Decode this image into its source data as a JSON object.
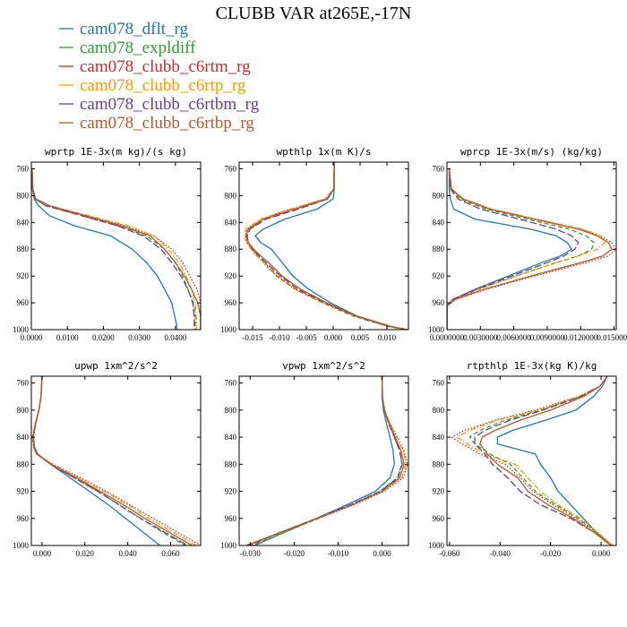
{
  "title": "CLUBB VAR at265E,-17N",
  "series_styles": [
    {
      "name": "cam078_dflt_rg",
      "color": "#1f77b4",
      "dash": "solid"
    },
    {
      "name": "cam078_expldiff",
      "color": "#2ca02c",
      "dash": "dashed"
    },
    {
      "name": "cam078_clubb_c6rtm_rg",
      "color": "#d62728",
      "dash": "dotted"
    },
    {
      "name": "cam078_clubb_c6rtp_rg",
      "color": "#ff9900",
      "dash": "dashdot"
    },
    {
      "name": "cam078_clubb_c6rtbm_rg",
      "color": "#6a3d9a",
      "dash": "longdash"
    },
    {
      "name": "cam078_clubb_c6rtbp_rg",
      "color": "#b35a2a",
      "dash": "solid"
    }
  ],
  "chart_data": [
    {
      "type": "line",
      "title": "wprtp  1E-3x(m kg)/(s kg)",
      "xlim": [
        0,
        0.047
      ],
      "ylim": [
        1000,
        750
      ],
      "xticks": [
        0,
        0.01,
        0.02,
        0.03,
        0.04
      ],
      "xticklabels": [
        "0.0000",
        "0.0100",
        "0.0200",
        "0.0300",
        "0.0400"
      ],
      "yticks": [
        760,
        800,
        840,
        880,
        920,
        960,
        1000
      ],
      "y": [
        760,
        790,
        805,
        815,
        830,
        845,
        860,
        880,
        900,
        920,
        940,
        960,
        980,
        990,
        1000
      ],
      "series": [
        {
          "name": "cam078_dflt_rg",
          "values": [
            0.0002,
            0.0003,
            0.0008,
            0.002,
            0.005,
            0.012,
            0.022,
            0.028,
            0.032,
            0.035,
            0.037,
            0.039,
            0.0398,
            0.0402,
            0.0405
          ]
        },
        {
          "name": "cam078_expldiff",
          "values": [
            0.0002,
            0.0004,
            0.001,
            0.004,
            0.014,
            0.024,
            0.032,
            0.037,
            0.04,
            0.042,
            0.0435,
            0.045,
            0.0455,
            0.0455,
            0.0455
          ]
        },
        {
          "name": "cam078_clubb_c6rtm_rg",
          "values": [
            0.0002,
            0.0004,
            0.0012,
            0.005,
            0.015,
            0.026,
            0.034,
            0.039,
            0.042,
            0.044,
            0.046,
            0.047,
            0.047,
            0.047,
            0.047
          ]
        },
        {
          "name": "cam078_clubb_c6rtp_rg",
          "values": [
            0.0002,
            0.0004,
            0.0012,
            0.005,
            0.016,
            0.027,
            0.034,
            0.038,
            0.041,
            0.043,
            0.0445,
            0.0455,
            0.0458,
            0.0458,
            0.0458
          ]
        },
        {
          "name": "cam078_clubb_c6rtbm_rg",
          "values": [
            0.0002,
            0.0004,
            0.0011,
            0.004,
            0.014,
            0.024,
            0.031,
            0.036,
            0.039,
            0.0415,
            0.0435,
            0.0448,
            0.0452,
            0.0452,
            0.0452
          ]
        },
        {
          "name": "cam078_clubb_c6rtbp_rg",
          "values": [
            0.0002,
            0.0004,
            0.0012,
            0.005,
            0.015,
            0.025,
            0.033,
            0.037,
            0.04,
            0.0425,
            0.0445,
            0.0462,
            0.047,
            0.047,
            0.047
          ]
        }
      ]
    },
    {
      "type": "line",
      "title": "wpthlp  1x(m K)/s",
      "xlim": [
        -0.0175,
        0.014
      ],
      "ylim": [
        1000,
        750
      ],
      "xticks": [
        -0.015,
        -0.01,
        -0.005,
        0,
        0.005,
        0.01
      ],
      "xticklabels": [
        "-0.015",
        "-0.010",
        "-0.005",
        "0.000",
        "0.005",
        "0.010"
      ],
      "yticks": [
        760,
        800,
        840,
        880,
        920,
        960,
        1000
      ],
      "y": [
        750,
        790,
        805,
        820,
        835,
        850,
        860,
        870,
        880,
        890,
        900,
        920,
        940,
        960,
        980,
        995,
        1000
      ],
      "series": [
        {
          "name": "cam078_dflt_rg",
          "values": [
            0.0002,
            0.0002,
            0.0,
            -0.003,
            -0.009,
            -0.013,
            -0.0145,
            -0.0135,
            -0.0115,
            -0.0105,
            -0.0095,
            -0.0075,
            -0.0045,
            -0.0005,
            0.0045,
            0.0105,
            0.0135
          ]
        },
        {
          "name": "cam078_expldiff",
          "values": [
            0.0002,
            0.0001,
            -0.001,
            -0.007,
            -0.013,
            -0.0155,
            -0.016,
            -0.0158,
            -0.015,
            -0.014,
            -0.0128,
            -0.0105,
            -0.007,
            -0.002,
            0.0038,
            0.01,
            0.0135
          ]
        },
        {
          "name": "cam078_clubb_c6rtm_rg",
          "values": [
            0.0002,
            0.0001,
            -0.0015,
            -0.008,
            -0.0135,
            -0.016,
            -0.0163,
            -0.016,
            -0.0152,
            -0.0142,
            -0.013,
            -0.0105,
            -0.007,
            -0.0018,
            0.0042,
            0.0105,
            0.0138
          ]
        },
        {
          "name": "cam078_clubb_c6rtp_rg",
          "values": [
            0.0002,
            0.0001,
            -0.0015,
            -0.008,
            -0.0135,
            -0.0163,
            -0.0165,
            -0.0162,
            -0.0153,
            -0.0142,
            -0.0128,
            -0.0102,
            -0.0068,
            -0.0018,
            0.004,
            0.0102,
            0.0138
          ]
        },
        {
          "name": "cam078_clubb_c6rtbm_rg",
          "values": [
            0.0002,
            0.0001,
            -0.001,
            -0.0065,
            -0.0125,
            -0.0155,
            -0.016,
            -0.0158,
            -0.015,
            -0.0138,
            -0.0125,
            -0.0098,
            -0.0065,
            -0.0015,
            0.0042,
            0.0104,
            0.0138
          ]
        },
        {
          "name": "cam078_clubb_c6rtbp_rg",
          "values": [
            0.0002,
            0.0001,
            -0.0012,
            -0.0072,
            -0.013,
            -0.0158,
            -0.0162,
            -0.0158,
            -0.0148,
            -0.0135,
            -0.012,
            -0.0095,
            -0.006,
            -0.0012,
            0.0045,
            0.0107,
            0.0138
          ]
        }
      ]
    },
    {
      "type": "line",
      "title": "wprcp  1E-3x(m/s) (kg/kg)",
      "xlim": [
        0,
        0.0152
      ],
      "ylim": [
        1000,
        750
      ],
      "xticks": [
        0,
        0.003,
        0.006,
        0.009,
        0.012,
        0.015
      ],
      "xticklabels": [
        "0.0000000",
        "0.0030000",
        "0.0060000",
        "0.0090000",
        "0.0120000",
        "0.0150000"
      ],
      "yticks": [
        760,
        800,
        840,
        880,
        920,
        960,
        1000
      ],
      "y": [
        760,
        790,
        805,
        820,
        835,
        850,
        860,
        870,
        880,
        890,
        900,
        920,
        940,
        955,
        965,
        980,
        1000
      ],
      "series": [
        {
          "name": "cam078_dflt_rg",
          "values": [
            0.0002,
            0.0002,
            0.0003,
            0.0006,
            0.0025,
            0.0075,
            0.0098,
            0.0108,
            0.0112,
            0.0102,
            0.0085,
            0.0055,
            0.0025,
            0.0005,
            0.0,
            0.0,
            0.0
          ]
        },
        {
          "name": "cam078_expldiff",
          "values": [
            0.0002,
            0.0003,
            0.0012,
            0.0035,
            0.0072,
            0.011,
            0.0125,
            0.0132,
            0.013,
            0.0118,
            0.0098,
            0.0062,
            0.0028,
            0.0006,
            0.0,
            0.0,
            0.0
          ]
        },
        {
          "name": "cam078_clubb_c6rtm_rg",
          "values": [
            0.0002,
            0.0004,
            0.0015,
            0.004,
            0.008,
            0.012,
            0.0138,
            0.0148,
            0.0152,
            0.0145,
            0.0125,
            0.0078,
            0.0035,
            0.0008,
            0.0,
            0.0,
            0.0
          ]
        },
        {
          "name": "cam078_clubb_c6rtp_rg",
          "values": [
            0.0002,
            0.0004,
            0.0015,
            0.004,
            0.008,
            0.0122,
            0.0138,
            0.0142,
            0.0135,
            0.0118,
            0.0098,
            0.0062,
            0.0028,
            0.0006,
            0.0,
            0.0,
            0.0
          ]
        },
        {
          "name": "cam078_clubb_c6rtbm_rg",
          "values": [
            0.0002,
            0.0003,
            0.001,
            0.003,
            0.0065,
            0.0098,
            0.0112,
            0.0118,
            0.0115,
            0.0105,
            0.009,
            0.0058,
            0.0026,
            0.0005,
            0.0,
            0.0,
            0.0
          ]
        },
        {
          "name": "cam078_clubb_c6rtbp_rg",
          "values": [
            0.0002,
            0.0004,
            0.0014,
            0.0038,
            0.0078,
            0.0118,
            0.0135,
            0.0145,
            0.0148,
            0.014,
            0.012,
            0.0075,
            0.0033,
            0.0007,
            0.0,
            0.0,
            0.0
          ]
        }
      ]
    },
    {
      "type": "line",
      "title": "upwp  1xm^2/s^2",
      "xlim": [
        -0.005,
        0.074
      ],
      "ylim": [
        1000,
        750
      ],
      "xticks": [
        0,
        0.02,
        0.04,
        0.06
      ],
      "xticklabels": [
        "0.000",
        "0.020",
        "0.040",
        "0.060"
      ],
      "yticks": [
        760,
        800,
        840,
        880,
        920,
        960,
        1000
      ],
      "y": [
        750,
        780,
        800,
        820,
        840,
        855,
        865,
        880,
        900,
        920,
        940,
        960,
        980,
        1000
      ],
      "series": [
        {
          "name": "cam078_dflt_rg",
          "values": [
            0.0,
            -0.0005,
            -0.0015,
            -0.003,
            -0.004,
            -0.0035,
            -0.002,
            0.004,
            0.013,
            0.022,
            0.031,
            0.039,
            0.047,
            0.055
          ]
        },
        {
          "name": "cam078_expldiff",
          "values": [
            0.0,
            -0.0005,
            -0.0015,
            -0.003,
            -0.0042,
            -0.0038,
            -0.0025,
            0.004,
            0.015,
            0.026,
            0.036,
            0.046,
            0.056,
            0.067
          ]
        },
        {
          "name": "cam078_clubb_c6rtm_rg",
          "values": [
            0.0,
            -0.0005,
            -0.0015,
            -0.0032,
            -0.0045,
            -0.004,
            -0.0025,
            0.005,
            0.018,
            0.03,
            0.041,
            0.052,
            0.063,
            0.074
          ]
        },
        {
          "name": "cam078_clubb_c6rtp_rg",
          "values": [
            0.0,
            -0.0005,
            -0.0015,
            -0.0032,
            -0.0045,
            -0.004,
            -0.0025,
            0.0045,
            0.017,
            0.029,
            0.04,
            0.05,
            0.061,
            0.072
          ]
        },
        {
          "name": "cam078_clubb_c6rtbm_rg",
          "values": [
            0.0,
            -0.0005,
            -0.0015,
            -0.003,
            -0.0042,
            -0.0038,
            -0.0025,
            0.004,
            0.015,
            0.026,
            0.036,
            0.046,
            0.057,
            0.068
          ]
        },
        {
          "name": "cam078_clubb_c6rtbp_rg",
          "values": [
            0.0,
            -0.0005,
            -0.0015,
            -0.003,
            -0.0042,
            -0.0038,
            -0.0025,
            0.0042,
            0.016,
            0.027,
            0.038,
            0.048,
            0.059,
            0.07
          ]
        }
      ]
    },
    {
      "type": "line",
      "title": "vpwp  1xm^2/s^2",
      "xlim": [
        -0.0325,
        0.006
      ],
      "ylim": [
        1000,
        750
      ],
      "xticks": [
        -0.03,
        -0.02,
        -0.01,
        0
      ],
      "xticklabels": [
        "-0.030",
        "-0.020",
        "-0.010",
        "0.000"
      ],
      "yticks": [
        760,
        800,
        840,
        880,
        920,
        960,
        1000
      ],
      "y": [
        750,
        780,
        800,
        820,
        840,
        860,
        880,
        900,
        920,
        940,
        960,
        980,
        1000
      ],
      "series": [
        {
          "name": "cam078_dflt_rg",
          "values": [
            0.0,
            0.0,
            0.0003,
            0.001,
            0.0018,
            0.0025,
            0.0028,
            0.0018,
            -0.0015,
            -0.008,
            -0.015,
            -0.022,
            -0.029
          ]
        },
        {
          "name": "cam078_expldiff",
          "values": [
            0.0,
            0.0001,
            0.0005,
            0.0015,
            0.0028,
            0.004,
            0.0045,
            0.0035,
            -0.0005,
            -0.007,
            -0.0145,
            -0.022,
            -0.0295
          ]
        },
        {
          "name": "cam078_clubb_c6rtm_rg",
          "values": [
            0.0,
            0.0001,
            0.0006,
            0.0018,
            0.0035,
            0.005,
            0.0058,
            0.0048,
            0.0005,
            -0.0065,
            -0.0145,
            -0.023,
            -0.031
          ]
        },
        {
          "name": "cam078_clubb_c6rtp_rg",
          "values": [
            0.0,
            0.0001,
            0.0006,
            0.0018,
            0.0034,
            0.0048,
            0.0055,
            0.0045,
            0.0002,
            -0.007,
            -0.015,
            -0.023,
            -0.0305
          ]
        },
        {
          "name": "cam078_clubb_c6rtbm_rg",
          "values": [
            0.0,
            0.0001,
            0.0005,
            0.0015,
            0.0028,
            0.004,
            0.0046,
            0.0036,
            -0.0004,
            -0.0072,
            -0.015,
            -0.0228,
            -0.0302
          ]
        },
        {
          "name": "cam078_clubb_c6rtbp_rg",
          "values": [
            0.0,
            0.0001,
            0.0005,
            0.0016,
            0.003,
            0.0043,
            0.005,
            0.004,
            0.0,
            -0.0068,
            -0.0148,
            -0.0228,
            -0.0308
          ]
        }
      ]
    },
    {
      "type": "line",
      "title": "rtpthlp  1E-3x(kg K)/kg",
      "xlim": [
        -0.061,
        0.006
      ],
      "ylim": [
        1000,
        750
      ],
      "xticks": [
        -0.06,
        -0.04,
        -0.02,
        0
      ],
      "xticklabels": [
        "-0.060",
        "-0.040",
        "-0.020",
        "0.000"
      ],
      "yticks": [
        760,
        800,
        840,
        880,
        920,
        960,
        1000
      ],
      "y": [
        750,
        765,
        780,
        800,
        815,
        830,
        840,
        850,
        865,
        880,
        900,
        920,
        940,
        960,
        980,
        1000
      ],
      "series": [
        {
          "name": "cam078_dflt_rg",
          "values": [
            0.0025,
            0.0005,
            -0.003,
            -0.01,
            -0.022,
            -0.035,
            -0.041,
            -0.041,
            -0.026,
            -0.024,
            -0.02,
            -0.017,
            -0.012,
            -0.007,
            -0.002,
            0.004
          ]
        },
        {
          "name": "cam078_expldiff",
          "values": [
            0.0025,
            -0.0005,
            -0.008,
            -0.024,
            -0.038,
            -0.048,
            -0.052,
            -0.05,
            -0.044,
            -0.036,
            -0.031,
            -0.026,
            -0.018,
            -0.009,
            -0.002,
            0.004
          ]
        },
        {
          "name": "cam078_clubb_c6rtm_rg",
          "values": [
            0.0025,
            -0.0005,
            -0.009,
            -0.026,
            -0.042,
            -0.054,
            -0.059,
            -0.055,
            -0.048,
            -0.038,
            -0.032,
            -0.027,
            -0.019,
            -0.01,
            -0.002,
            0.0045
          ]
        },
        {
          "name": "cam078_clubb_c6rtp_rg",
          "values": [
            0.0025,
            -0.0005,
            -0.009,
            -0.025,
            -0.041,
            -0.052,
            -0.057,
            -0.053,
            -0.046,
            -0.034,
            -0.029,
            -0.024,
            -0.017,
            -0.008,
            -0.0015,
            0.0045
          ]
        },
        {
          "name": "cam078_clubb_c6rtbm_rg",
          "values": [
            0.0025,
            -0.0005,
            -0.008,
            -0.023,
            -0.036,
            -0.046,
            -0.05,
            -0.05,
            -0.046,
            -0.043,
            -0.037,
            -0.032,
            -0.024,
            -0.012,
            -0.003,
            0.004
          ]
        },
        {
          "name": "cam078_clubb_c6rtbp_rg",
          "values": [
            0.0025,
            -0.0005,
            -0.007,
            -0.02,
            -0.032,
            -0.042,
            -0.047,
            -0.048,
            -0.045,
            -0.041,
            -0.033,
            -0.029,
            -0.021,
            -0.011,
            -0.003,
            0.004
          ]
        }
      ]
    }
  ]
}
